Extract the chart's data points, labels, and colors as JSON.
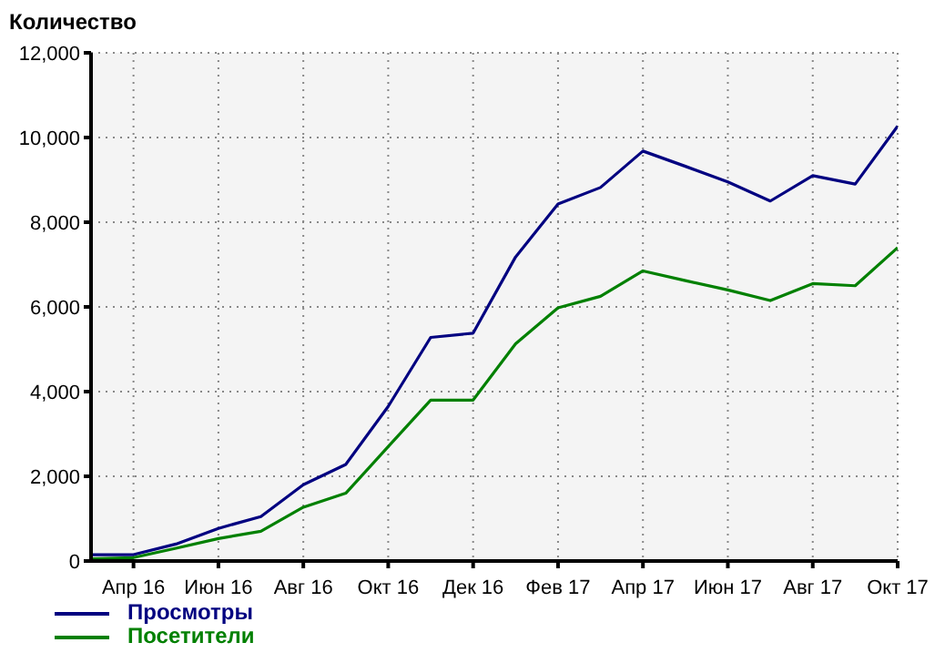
{
  "chart_data": {
    "type": "line",
    "ylabel": "Количество",
    "x": [
      "2016-03",
      "2016-04",
      "2016-05",
      "2016-06",
      "2016-07",
      "2016-08",
      "2016-09",
      "2016-10",
      "2016-11",
      "2016-12",
      "2017-01",
      "2017-02",
      "2017-03",
      "2017-04",
      "2017-05",
      "2017-06",
      "2017-07",
      "2017-08",
      "2017-09",
      "2017-10"
    ],
    "series": [
      {
        "name": "Просмотры",
        "color": "#000080",
        "values": [
          150,
          150,
          400,
          770,
          1050,
          1800,
          2280,
          3650,
          5280,
          5380,
          7180,
          8430,
          8820,
          9680,
          9320,
          8950,
          8500,
          9100,
          8900,
          10270
        ]
      },
      {
        "name": "Посетители",
        "color": "#008000",
        "values": [
          50,
          80,
          300,
          530,
          700,
          1270,
          1600,
          2700,
          3800,
          3800,
          5130,
          5980,
          6250,
          6850,
          6620,
          6400,
          6150,
          6550,
          6500,
          7400
        ]
      }
    ],
    "xlim": [
      "2016-03",
      "2017-10"
    ],
    "xticks": [
      {
        "value": "2016-04",
        "label": "Апр 16"
      },
      {
        "value": "2016-06",
        "label": "Июн 16"
      },
      {
        "value": "2016-08",
        "label": "Авг 16"
      },
      {
        "value": "2016-10",
        "label": "Окт 16"
      },
      {
        "value": "2016-12",
        "label": "Дек 16"
      },
      {
        "value": "2017-02",
        "label": "Фев 17"
      },
      {
        "value": "2017-04",
        "label": "Апр 17"
      },
      {
        "value": "2017-06",
        "label": "Июн 17"
      },
      {
        "value": "2017-08",
        "label": "Авг 17"
      },
      {
        "value": "2017-10",
        "label": "Окт 17"
      }
    ],
    "ylim": [
      0,
      12000
    ],
    "yticks": [
      0,
      {
        "value": 2000,
        "label": "2,000"
      },
      {
        "value": 4000,
        "label": "4,000"
      },
      {
        "value": 6000,
        "label": "6,000"
      },
      {
        "value": 8000,
        "label": "8,000"
      },
      {
        "value": 10000,
        "label": "10,000"
      },
      {
        "value": 12000,
        "label": "12,000"
      }
    ],
    "grid": true,
    "legend": "bottom left",
    "marker": "none",
    "line_style": "solid"
  }
}
